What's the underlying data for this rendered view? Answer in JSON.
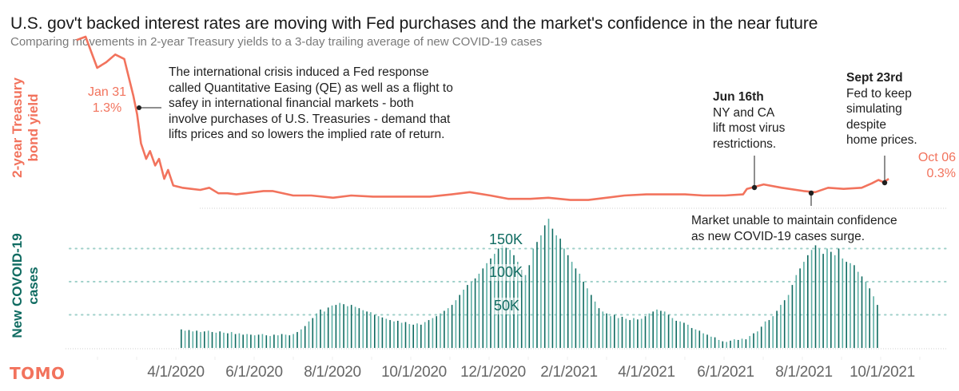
{
  "header": {
    "title": "U.S. gov't backed interest rates are moving with Fed purchases and the market's confidence in the near future",
    "subtitle": "Comparing movements in 2-year Treasury yields to a 3-day trailing average of new COVID-19 cases"
  },
  "logo": "TOMO",
  "colors": {
    "yield_line": "#f2735d",
    "cases_bar": "#0f6b61",
    "cases_bar_light": "#5fb0a6",
    "annotation": "#1f1f1f",
    "grid": "#9fd0c9"
  },
  "chart_data": [
    {
      "type": "line",
      "title": "2-year Treasury bond yield",
      "ylabel": "2-year Treasury bond yield",
      "unit": "%",
      "ylim": [
        0.1,
        1.4
      ],
      "xlim": [
        "2020-01-15",
        "2021-10-15"
      ],
      "x": [
        "2020-01-15",
        "2020-01-22",
        "2020-01-31",
        "2020-02-07",
        "2020-02-14",
        "2020-02-21",
        "2020-02-28",
        "2020-03-02",
        "2020-03-05",
        "2020-03-09",
        "2020-03-12",
        "2020-03-16",
        "2020-03-19",
        "2020-03-23",
        "2020-03-26",
        "2020-03-30",
        "2020-04-06",
        "2020-04-13",
        "2020-04-20",
        "2020-04-27",
        "2020-05-04",
        "2020-05-11",
        "2020-05-18",
        "2020-06-01",
        "2020-06-08",
        "2020-06-15",
        "2020-07-01",
        "2020-07-15",
        "2020-08-01",
        "2020-08-15",
        "2020-09-01",
        "2020-09-15",
        "2020-10-01",
        "2020-10-15",
        "2020-11-01",
        "2020-11-15",
        "2020-12-01",
        "2020-12-15",
        "2021-01-01",
        "2021-01-15",
        "2021-02-01",
        "2021-02-15",
        "2021-03-01",
        "2021-03-15",
        "2021-04-01",
        "2021-04-15",
        "2021-05-01",
        "2021-05-15",
        "2021-06-01",
        "2021-06-15",
        "2021-06-18",
        "2021-07-01",
        "2021-07-15",
        "2021-08-01",
        "2021-08-10",
        "2021-08-20",
        "2021-09-01",
        "2021-09-15",
        "2021-09-23",
        "2021-09-28",
        "2021-10-02",
        "2021-10-06"
      ],
      "values": [
        1.55,
        1.58,
        1.3,
        1.35,
        1.42,
        1.38,
        1.05,
        0.88,
        0.62,
        0.48,
        0.55,
        0.42,
        0.48,
        0.3,
        0.38,
        0.24,
        0.22,
        0.21,
        0.2,
        0.22,
        0.17,
        0.17,
        0.16,
        0.18,
        0.19,
        0.19,
        0.15,
        0.15,
        0.13,
        0.15,
        0.14,
        0.14,
        0.14,
        0.14,
        0.16,
        0.18,
        0.15,
        0.12,
        0.12,
        0.13,
        0.11,
        0.11,
        0.13,
        0.15,
        0.16,
        0.16,
        0.16,
        0.15,
        0.15,
        0.16,
        0.21,
        0.25,
        0.22,
        0.19,
        0.18,
        0.22,
        0.21,
        0.22,
        0.26,
        0.29,
        0.27,
        0.3
      ],
      "start_label": {
        "date": "Jan 31",
        "value": "1.3%"
      },
      "end_label": {
        "date": "Oct 06",
        "value": "0.3%"
      }
    },
    {
      "type": "bar",
      "title": "New COVID-19 cases (3-day trailing average)",
      "ylabel": "New COVOID-19 cases",
      "ylim": [
        0,
        200000
      ],
      "yticks": [
        50000,
        100000,
        150000
      ],
      "ytick_labels": [
        "50K",
        "100K",
        "150K"
      ],
      "grid": true,
      "x_start": "2020-04-01",
      "x_step_days": 3,
      "values": [
        28000,
        26000,
        27000,
        25000,
        26000,
        24000,
        25000,
        26000,
        24000,
        23000,
        25000,
        23000,
        22000,
        24000,
        21000,
        22000,
        20000,
        21000,
        20000,
        19000,
        20000,
        21000,
        19000,
        18000,
        20000,
        19000,
        21000,
        20000,
        19000,
        21000,
        24000,
        28000,
        33000,
        40000,
        45000,
        52000,
        58000,
        55000,
        61000,
        64000,
        65000,
        68000,
        66000,
        63000,
        65000,
        62000,
        60000,
        57000,
        55000,
        54000,
        50000,
        48000,
        46000,
        44000,
        42000,
        40000,
        41000,
        38000,
        39000,
        36000,
        35000,
        37000,
        35000,
        39000,
        42000,
        45000,
        48000,
        52000,
        56000,
        60000,
        65000,
        72000,
        80000,
        88000,
        95000,
        100000,
        105000,
        112000,
        120000,
        128000,
        135000,
        142000,
        150000,
        155000,
        152000,
        148000,
        140000,
        130000,
        118000,
        110000,
        125000,
        150000,
        160000,
        170000,
        185000,
        195000,
        180000,
        170000,
        165000,
        150000,
        140000,
        130000,
        120000,
        112000,
        100000,
        90000,
        80000,
        70000,
        60000,
        55000,
        52000,
        48000,
        50000,
        45000,
        47000,
        44000,
        42000,
        45000,
        43000,
        44000,
        48000,
        52000,
        55000,
        58000,
        56000,
        55000,
        50000,
        45000,
        41000,
        40000,
        38000,
        35000,
        30000,
        28000,
        26000,
        22000,
        20000,
        17000,
        16000,
        12000,
        10000,
        9000,
        11000,
        13000,
        12000,
        14000,
        13000,
        18000,
        22000,
        25000,
        32000,
        40000,
        42000,
        48000,
        56000,
        65000,
        72000,
        80000,
        95000,
        110000,
        120000,
        130000,
        140000,
        148000,
        155000,
        150000,
        142000,
        150000,
        145000,
        140000,
        150000,
        135000,
        130000,
        128000,
        125000,
        115000,
        108000,
        100000,
        90000,
        78000,
        65000
      ]
    }
  ],
  "x_axis": {
    "tick_labels": [
      "4/1/2020",
      "6/1/2020",
      "8/1/2020",
      "10/1/2020",
      "12/1/2020",
      "2/1/2021",
      "4/1/2021",
      "6/1/2021",
      "8/1/2021",
      "10/1/2021"
    ]
  },
  "y_axis_labels": {
    "top_line1": "2-year Treasury",
    "top_line2": "bond yield",
    "bottom_line1": "New COVOID-19",
    "bottom_line2": "cases"
  },
  "annotations": {
    "qe": {
      "lines": [
        "The international crisis induced a Fed response",
        "called Quantitative Easing (QE) as well as a flight to",
        "safey in international financial markets - both",
        "involve purchases of U.S. Treasuries - demand that",
        "lifts prices and so lowers the implied rate of return."
      ]
    },
    "jun16": {
      "heading": "Jun 16th",
      "lines": [
        "NY and CA",
        "lift most virus",
        "restrictions."
      ]
    },
    "sep23": {
      "heading": "Sept 23rd",
      "lines": [
        "Fed to keep",
        "simulating",
        "despite",
        "home prices."
      ]
    },
    "market": {
      "lines": [
        "Market unable to maintain confidence",
        "as new COVID-19 cases surge."
      ]
    }
  }
}
